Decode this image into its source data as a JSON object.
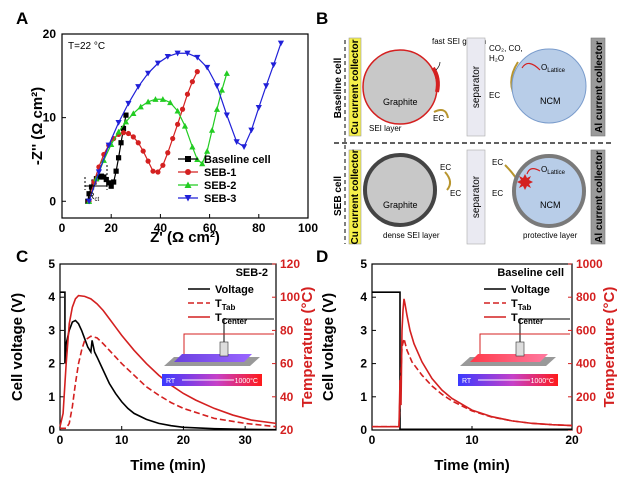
{
  "panelA": {
    "letter": "A",
    "temperature": "T=22 °C",
    "xlabel": "Z' (Ω cm²)",
    "ylabel": "-Z'' (Ω cm²)",
    "rct_label": "R",
    "rct_sub": "ct",
    "chart_data": {
      "type": "scatter",
      "xlim": [
        0,
        100
      ],
      "ylim": [
        -2,
        20
      ],
      "xticks": [
        0,
        20,
        40,
        60,
        80,
        100
      ],
      "yticks": [
        0,
        10,
        20
      ],
      "legend_position": "bottom-right",
      "series": [
        {
          "name": "Baseline cell",
          "color": "#000000",
          "marker": "square",
          "x": [
            10.5,
            11,
            12,
            13,
            14,
            15,
            16,
            17,
            18,
            19,
            20,
            21,
            22,
            23,
            24,
            25,
            26
          ],
          "y": [
            0,
            0.9,
            1.7,
            2.3,
            2.7,
            2.9,
            3.0,
            2.9,
            2.6,
            2.2,
            1.8,
            2.3,
            3.6,
            5.2,
            7.0,
            8.7,
            10.3
          ]
        },
        {
          "name": "SEB-1",
          "color": "#d42020",
          "marker": "circle",
          "x": [
            11,
            13,
            15,
            17,
            19,
            21,
            23,
            25,
            27,
            29,
            31,
            33,
            35,
            37,
            39,
            41,
            43,
            45,
            47,
            49,
            51,
            53,
            55
          ],
          "y": [
            0,
            2.3,
            4.1,
            5.6,
            6.7,
            7.5,
            8.0,
            8.2,
            8.1,
            7.7,
            7.0,
            6.0,
            4.8,
            3.6,
            3.5,
            4.3,
            5.8,
            7.5,
            9.2,
            11.0,
            12.8,
            14.3,
            15.5
          ]
        },
        {
          "name": "SEB-2",
          "color": "#22cc22",
          "marker": "triangle-up",
          "x": [
            11,
            14,
            17,
            20,
            23,
            26,
            29,
            32,
            35,
            38,
            41,
            44,
            47,
            50,
            53,
            55,
            57,
            59,
            61,
            63,
            65,
            67
          ],
          "y": [
            0,
            2.7,
            4.9,
            6.8,
            8.3,
            9.5,
            10.5,
            11.3,
            11.9,
            12.2,
            12.2,
            11.8,
            10.8,
            9.0,
            6.5,
            5.0,
            4.5,
            6.0,
            8.5,
            11.0,
            13.3,
            15.3
          ]
        },
        {
          "name": "SEB-3",
          "color": "#2020d8",
          "marker": "triangle-down",
          "x": [
            11,
            15,
            19,
            23,
            27,
            31,
            35,
            39,
            43,
            47,
            51,
            55,
            59,
            63,
            67,
            71,
            74,
            77,
            80,
            83,
            86,
            89
          ],
          "y": [
            0,
            3.5,
            6.7,
            9.4,
            11.7,
            13.7,
            15.3,
            16.5,
            17.3,
            17.7,
            17.7,
            17.2,
            16.0,
            13.8,
            10.3,
            7.1,
            6.5,
            8.5,
            11.2,
            13.8,
            16.3,
            18.9
          ]
        }
      ]
    }
  },
  "panelB": {
    "letter": "B",
    "baseline_row": "Baseline cell",
    "seb_row": "SEB cell",
    "cu_collector": "Cu current collector",
    "al_collector": "Al current collector",
    "separator": "separator",
    "graphite": "Graphite",
    "ncm": "NCM",
    "fast_sei": "fast SEI growth",
    "sei_layer": "SEI layer",
    "dense_sei": "dense SEI layer",
    "protective": "protective layer",
    "ec": "EC",
    "gas_line1": "CO₂, CO,",
    "gas_line2": "H₂O",
    "o_lattice_main": "O",
    "o_lattice_sub": "Lattice"
  },
  "panelC": {
    "letter": "C",
    "xlabel": "Time (min)",
    "ylabel_left": "Cell voltage (V)",
    "ylabel_right": "Temperature (°C)",
    "legend_title": "SEB-2",
    "legend": {
      "voltage": "Voltage",
      "ttab": "T",
      "ttab_sub": "Tab",
      "tcenter": "T",
      "tcenter_sub": "Center"
    },
    "inset": {
      "rt": "RT",
      "hot": "1000°C"
    },
    "chart_data": {
      "type": "line",
      "xlim": [
        0,
        35
      ],
      "xticks": [
        0,
        10,
        20,
        30
      ],
      "ylim_left": [
        0,
        5
      ],
      "yticks_left": [
        0,
        1,
        2,
        3,
        4,
        5
      ],
      "ylim_right": [
        20,
        120
      ],
      "yticks_right": [
        20,
        40,
        60,
        80,
        100,
        120
      ],
      "series": [
        {
          "name": "Voltage",
          "axis": "left",
          "style": "solid",
          "color": "#000000",
          "x": [
            0,
            0.8,
            0.8,
            1,
            1.5,
            2,
            2.5,
            3,
            3.5,
            4,
            4.5,
            5,
            5.2,
            5.6,
            6,
            7,
            8,
            9,
            10,
            11,
            12,
            14,
            16,
            18,
            20,
            25,
            30,
            35
          ],
          "y": [
            4.15,
            4.15,
            2.0,
            2.6,
            3.0,
            3.25,
            3.3,
            3.2,
            3.0,
            2.75,
            2.5,
            2.35,
            2.7,
            2.35,
            2.2,
            1.8,
            1.4,
            1.1,
            0.85,
            0.65,
            0.5,
            0.32,
            0.2,
            0.13,
            0.08,
            0.04,
            0.02,
            0.01
          ]
        },
        {
          "name": "T Center",
          "axis": "right",
          "style": "solid",
          "color": "#d42020",
          "x": [
            0,
            0.5,
            1,
            1.5,
            2,
            2.5,
            3,
            4,
            5,
            6,
            7,
            8,
            9,
            10,
            12,
            14,
            16,
            18,
            20,
            22,
            25,
            28,
            31,
            35
          ],
          "y": [
            22,
            30,
            60,
            84,
            94,
            99,
            101,
            100.5,
            99,
            96,
            92,
            87,
            82,
            77,
            68,
            60,
            53,
            47,
            42,
            38,
            33,
            29,
            26,
            24
          ]
        },
        {
          "name": "T Tab",
          "axis": "right",
          "style": "dashed",
          "color": "#d42020",
          "x": [
            0,
            1,
            1.5,
            2,
            2.5,
            3,
            3.5,
            4,
            5,
            6,
            7,
            8,
            9,
            10,
            12,
            14,
            16,
            18,
            20,
            25,
            30,
            35
          ],
          "y": [
            21,
            21,
            24,
            34,
            48,
            60,
            68,
            74,
            76.5,
            75.5,
            72,
            68,
            64,
            60,
            53,
            46,
            41,
            36.5,
            33,
            27,
            24,
            22
          ]
        }
      ]
    }
  },
  "panelD": {
    "letter": "D",
    "xlabel": "Time (min)",
    "ylabel_left": "Cell voltage (V)",
    "ylabel_right": "Temperature (°C)",
    "legend_title": "Baseline cell",
    "legend": {
      "voltage": "Voltage",
      "ttab": "T",
      "ttab_sub": "Tab",
      "tcenter": "T",
      "tcenter_sub": "Center"
    },
    "inset": {
      "rt": "RT",
      "hot": "1000°C"
    },
    "chart_data": {
      "type": "line",
      "xlim": [
        0,
        20
      ],
      "xticks": [
        0,
        10,
        20
      ],
      "ylim_left": [
        0,
        5
      ],
      "yticks_left": [
        0,
        1,
        2,
        3,
        4,
        5
      ],
      "ylim_right": [
        0,
        1000
      ],
      "yticks_right": [
        0,
        200,
        400,
        600,
        800,
        1000
      ],
      "series": [
        {
          "name": "Voltage",
          "axis": "left",
          "style": "solid",
          "color": "#000000",
          "x": [
            0,
            2.8,
            2.8,
            20
          ],
          "y": [
            4.15,
            4.15,
            0.02,
            0.02
          ]
        },
        {
          "name": "T Center",
          "axis": "right",
          "style": "solid",
          "color": "#d42020",
          "x": [
            0,
            2.7,
            2.8,
            2.9,
            3.0,
            3.1,
            3.2,
            3.3,
            3.5,
            3.8,
            4.2,
            5,
            6,
            7,
            8,
            10,
            12,
            14,
            16,
            18,
            20
          ],
          "y": [
            20,
            20,
            300,
            150,
            600,
            720,
            790,
            760,
            690,
            600,
            520,
            410,
            310,
            240,
            190,
            120,
            80,
            55,
            40,
            32,
            27
          ]
        },
        {
          "name": "T Tab",
          "axis": "right",
          "style": "dashed",
          "color": "#d42020",
          "x": [
            0,
            2.7,
            2.8,
            3.0,
            3.2,
            3.5,
            4,
            5,
            6,
            7,
            8,
            10,
            12,
            14,
            16,
            18,
            20
          ],
          "y": [
            20,
            20,
            200,
            500,
            550,
            480,
            410,
            330,
            265,
            215,
            175,
            115,
            78,
            55,
            40,
            32,
            27
          ]
        }
      ]
    }
  }
}
